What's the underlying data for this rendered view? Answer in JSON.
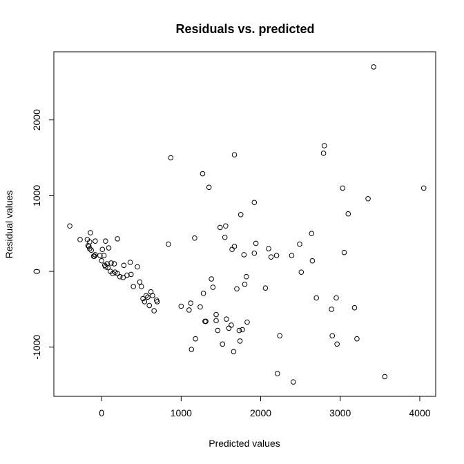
{
  "chart_data": {
    "type": "scatter",
    "title": "Residuals vs. predicted",
    "xlabel": "Predicted values",
    "ylabel": "Residual values",
    "xlim": [
      -600,
      4200
    ],
    "ylim": [
      -1650,
      2900
    ],
    "xticks": [
      0,
      1000,
      2000,
      3000,
      4000
    ],
    "xtick_labels": [
      "0",
      "1000",
      "2000",
      "3000",
      "4000"
    ],
    "yticks": [
      -1000,
      0,
      1000,
      2000
    ],
    "ytick_labels": [
      "-1000",
      "0",
      "1000",
      "2000"
    ],
    "grid": false,
    "series": [
      {
        "marker": "open-circle",
        "color": "#000000",
        "points": [
          [
            -400,
            600
          ],
          [
            -270,
            420
          ],
          [
            -180,
            420
          ],
          [
            -170,
            340
          ],
          [
            -160,
            330
          ],
          [
            -150,
            390
          ],
          [
            -150,
            300
          ],
          [
            -140,
            510
          ],
          [
            -130,
            280
          ],
          [
            -100,
            200
          ],
          [
            -90,
            200
          ],
          [
            -80,
            220
          ],
          [
            -80,
            400
          ],
          [
            -20,
            210
          ],
          [
            0,
            140
          ],
          [
            10,
            290
          ],
          [
            30,
            210
          ],
          [
            40,
            80
          ],
          [
            50,
            400
          ],
          [
            50,
            60
          ],
          [
            70,
            100
          ],
          [
            80,
            50
          ],
          [
            90,
            310
          ],
          [
            110,
            0
          ],
          [
            120,
            110
          ],
          [
            140,
            -30
          ],
          [
            160,
            100
          ],
          [
            170,
            -10
          ],
          [
            200,
            430
          ],
          [
            200,
            -30
          ],
          [
            230,
            -70
          ],
          [
            270,
            -80
          ],
          [
            280,
            80
          ],
          [
            320,
            -50
          ],
          [
            360,
            120
          ],
          [
            370,
            -40
          ],
          [
            400,
            -200
          ],
          [
            450,
            60
          ],
          [
            480,
            -140
          ],
          [
            500,
            -200
          ],
          [
            520,
            -360
          ],
          [
            540,
            -400
          ],
          [
            560,
            -320
          ],
          [
            580,
            -340
          ],
          [
            600,
            -450
          ],
          [
            620,
            -270
          ],
          [
            640,
            -320
          ],
          [
            660,
            -520
          ],
          [
            690,
            -380
          ],
          [
            700,
            -400
          ],
          [
            840,
            360
          ],
          [
            870,
            1500
          ],
          [
            1000,
            -460
          ],
          [
            1100,
            -510
          ],
          [
            1120,
            -420
          ],
          [
            1130,
            -1030
          ],
          [
            1170,
            440
          ],
          [
            1180,
            -890
          ],
          [
            1240,
            -470
          ],
          [
            1270,
            1290
          ],
          [
            1280,
            -290
          ],
          [
            1300,
            -660
          ],
          [
            1310,
            -660
          ],
          [
            1350,
            1110
          ],
          [
            1380,
            -100
          ],
          [
            1400,
            -210
          ],
          [
            1440,
            -570
          ],
          [
            1440,
            -650
          ],
          [
            1460,
            -780
          ],
          [
            1490,
            580
          ],
          [
            1520,
            -960
          ],
          [
            1550,
            450
          ],
          [
            1560,
            600
          ],
          [
            1570,
            -630
          ],
          [
            1600,
            -750
          ],
          [
            1630,
            -710
          ],
          [
            1640,
            290
          ],
          [
            1660,
            -1060
          ],
          [
            1670,
            1540
          ],
          [
            1670,
            330
          ],
          [
            1700,
            -230
          ],
          [
            1730,
            -780
          ],
          [
            1740,
            -920
          ],
          [
            1750,
            750
          ],
          [
            1770,
            -770
          ],
          [
            1790,
            220
          ],
          [
            1800,
            -170
          ],
          [
            1820,
            -70
          ],
          [
            1830,
            -670
          ],
          [
            1920,
            910
          ],
          [
            1920,
            240
          ],
          [
            1940,
            370
          ],
          [
            2060,
            -220
          ],
          [
            2100,
            300
          ],
          [
            2130,
            190
          ],
          [
            2200,
            210
          ],
          [
            2210,
            -1350
          ],
          [
            2240,
            -850
          ],
          [
            2390,
            210
          ],
          [
            2410,
            -1460
          ],
          [
            2490,
            360
          ],
          [
            2510,
            -10
          ],
          [
            2640,
            500
          ],
          [
            2650,
            140
          ],
          [
            2700,
            -350
          ],
          [
            2790,
            1560
          ],
          [
            2800,
            1660
          ],
          [
            2890,
            -500
          ],
          [
            2900,
            -850
          ],
          [
            2950,
            -350
          ],
          [
            2960,
            -960
          ],
          [
            3030,
            1100
          ],
          [
            3050,
            250
          ],
          [
            3100,
            760
          ],
          [
            3180,
            -480
          ],
          [
            3210,
            -890
          ],
          [
            3350,
            960
          ],
          [
            3420,
            2700
          ],
          [
            3560,
            -1390
          ],
          [
            4050,
            1100
          ]
        ]
      }
    ]
  }
}
